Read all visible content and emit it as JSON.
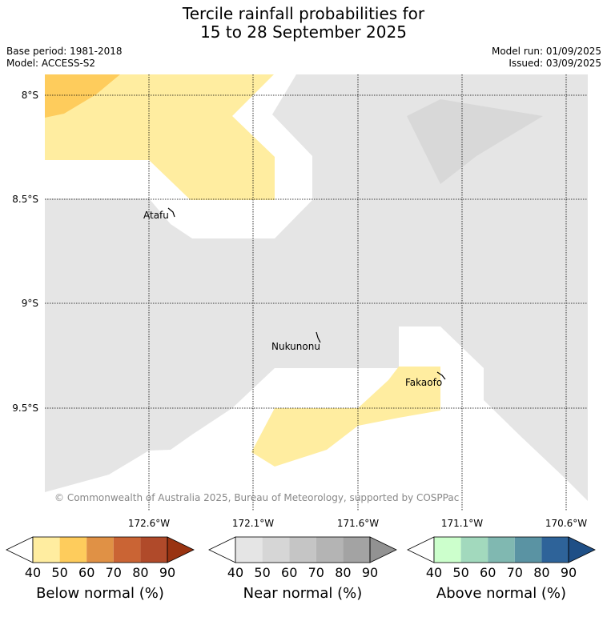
{
  "title": {
    "line1": "Tercile rainfall probabilities for",
    "line2": "15 to 28 September 2025"
  },
  "meta": {
    "base_period": "Base period: 1981-2018",
    "model": "Model: ACCESS-S2",
    "model_run": "Model run: 01/09/2025",
    "issued": "Issued: 03/09/2025"
  },
  "map": {
    "lat_labels": [
      "8°S",
      "8.5°S",
      "9°S",
      "9.5°S"
    ],
    "lon_labels": [
      "172.6°W",
      "172.1°W",
      "171.6°W",
      "171.1°W",
      "170.6°W"
    ],
    "places": [
      "Atafu",
      "Nukunonu",
      "Fakaofo"
    ],
    "copyright": "© Commonwealth of Australia 2025, Bureau of Meteorology, supported by COSPPac"
  },
  "colorbars": [
    {
      "title": "Below normal (%)",
      "ticks": [
        "40",
        "50",
        "60",
        "70",
        "80",
        "90"
      ],
      "colors": [
        "#ffffff",
        "#ffeda0",
        "#fecc5c",
        "#e09145",
        "#ca6434",
        "#b04a2a",
        "#993311"
      ]
    },
    {
      "title": "Near normal (%)",
      "ticks": [
        "40",
        "50",
        "60",
        "70",
        "80",
        "90"
      ],
      "colors": [
        "#ffffff",
        "#e5e5e5",
        "#d6d6d6",
        "#c5c5c5",
        "#b4b4b4",
        "#a3a3a3",
        "#929292"
      ]
    },
    {
      "title": "Above normal (%)",
      "ticks": [
        "40",
        "50",
        "60",
        "70",
        "80",
        "90"
      ],
      "colors": [
        "#ffffff",
        "#ccffcc",
        "#a2d9bd",
        "#80b8b1",
        "#5a93a3",
        "#2e6399",
        "#1f4f86"
      ]
    }
  ]
}
